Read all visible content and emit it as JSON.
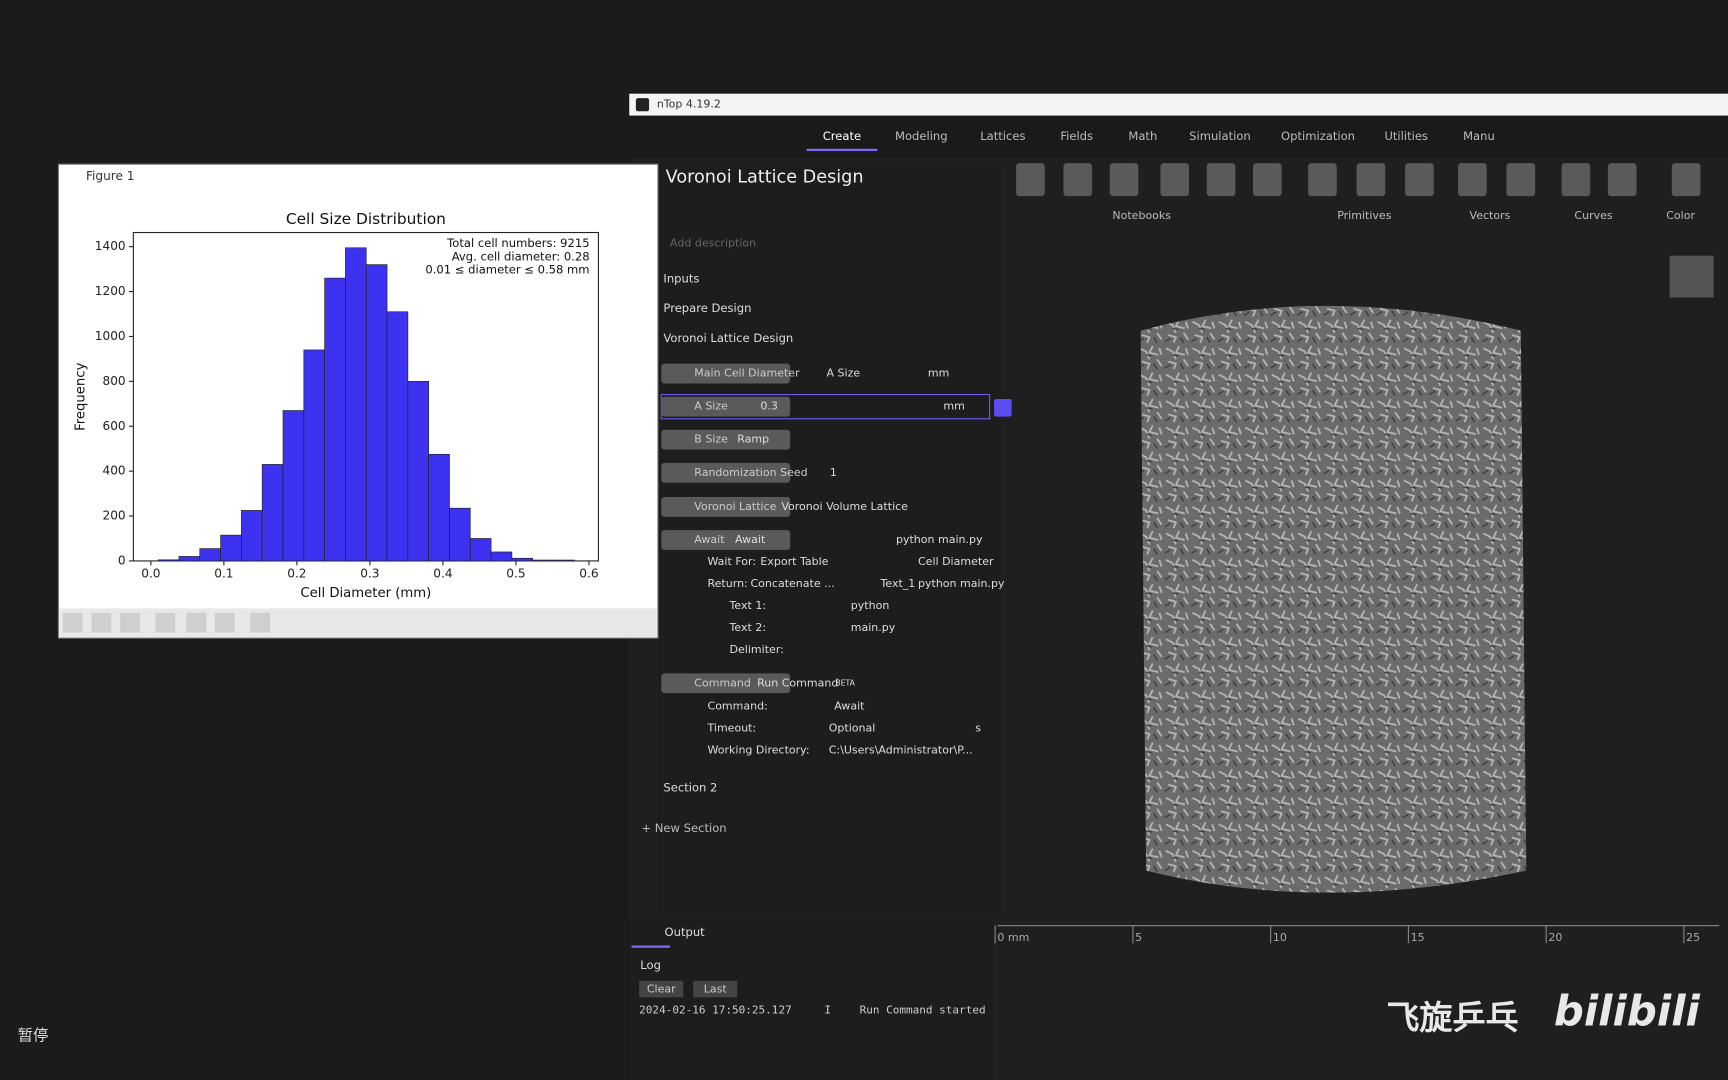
{
  "player": {
    "pause": "暂停"
  },
  "watermark": {
    "channel": "飞旋乒乓",
    "site": "bilibili"
  },
  "figure": {
    "window_title": "Figure 1",
    "chart_data": {
      "type": "histogram",
      "title": "Cell Size Distribution",
      "x_label": "Cell Diameter (mm)",
      "y_label": "Frequency",
      "annotation": [
        "Total cell numbers: 9215",
        "Avg. cell diameter: 0.28",
        "0.01 ≤ diameter ≤ 0.58 mm"
      ],
      "bins": [
        0.01,
        0.0385,
        0.067,
        0.0955,
        0.124,
        0.1525,
        0.181,
        0.2095,
        0.238,
        0.2665,
        0.295,
        0.3235,
        0.352,
        0.3805,
        0.409,
        0.4375,
        0.466,
        0.4945,
        0.523,
        0.5515,
        0.58
      ],
      "values": [
        5,
        20,
        55,
        115,
        225,
        430,
        670,
        940,
        1260,
        1395,
        1320,
        1110,
        800,
        475,
        235,
        100,
        40,
        12,
        4,
        4
      ],
      "color": "#3d32f0",
      "edge_color": "#222222",
      "xlim": [
        -0.024,
        0.613
      ],
      "ylim": [
        0,
        1463
      ],
      "xticks": [
        {
          "value": 0,
          "label": "0.0"
        },
        0.1,
        0.2,
        0.3,
        0.4,
        0.5,
        0.6
      ],
      "yticks": [
        0,
        200,
        400,
        600,
        800,
        1000,
        1200,
        1400
      ]
    }
  },
  "app": {
    "window_title": "nTop 4.19.2",
    "tabs": [
      "Create",
      "Modeling",
      "Lattices",
      "Fields",
      "Math",
      "Simulation",
      "Optimization",
      "Utilities",
      "Manu"
    ],
    "ribbon": [
      "Notebooks",
      "Primitives",
      "Vectors",
      "Curves",
      "Color"
    ],
    "notebook": {
      "title": "Voronoi Lattice Design",
      "description_placeholder": "Add description",
      "sections": [
        "Inputs",
        "Prepare Design",
        "Voronoi Lattice Design"
      ],
      "blocks": [
        [
          "Main Cell Diameter",
          "A Size",
          "mm"
        ],
        [
          "A Size",
          "0.3",
          "mm"
        ],
        [
          "B Size",
          "Ramp"
        ],
        [
          "Randomization Seed",
          "1"
        ],
        [
          "Voronoi Lattice",
          "Voronoi Volume Lattice"
        ],
        [
          "Await",
          "Await",
          "python main.py"
        ],
        [
          "Wait For:",
          "Export Table",
          "Cell Diameter"
        ],
        [
          "Return:",
          "Concatenate ...",
          "Text_1",
          "python main.py"
        ],
        [
          "Text 1:",
          "python"
        ],
        [
          "Text 2:",
          "main.py"
        ],
        [
          "Delimiter:"
        ],
        [
          "Command",
          "Run Command",
          "BETA"
        ],
        [
          "Command:",
          "Await"
        ],
        [
          "Timeout:",
          "Optional",
          "s"
        ],
        [
          "Working Directory:",
          "C:\\Users\\Administrator\\P..."
        ]
      ],
      "section2": "Section 2",
      "new_section": "+ New Section"
    },
    "viewport": {
      "ruler": [
        "0 mm",
        "5",
        "10",
        "15",
        "20",
        "25"
      ]
    },
    "output": {
      "tab": "Output",
      "log_title": "Log",
      "buttons": [
        "Clear",
        "Last"
      ],
      "log": [
        [
          "2024-02-16 17:50:25.127",
          "I",
          "Run Command started"
        ]
      ]
    }
  }
}
